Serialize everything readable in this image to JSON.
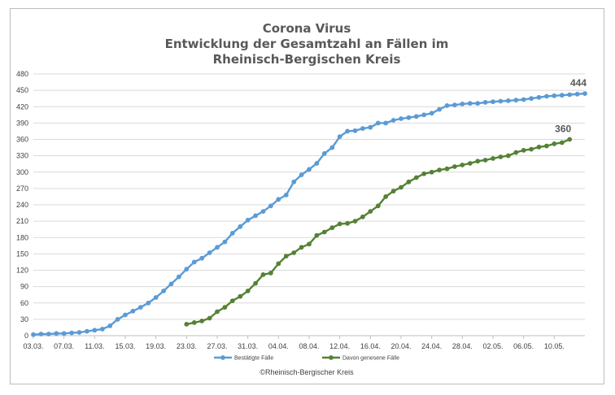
{
  "chart_data": {
    "type": "line",
    "title_lines": [
      "Corona Virus",
      "Entwicklung der Gesamtzahl an Fällen im",
      "Rheinisch-Bergischen Kreis"
    ],
    "xlabel": "",
    "ylabel": "",
    "ylim": [
      0,
      480
    ],
    "yticks": [
      0,
      30,
      60,
      90,
      120,
      150,
      180,
      210,
      240,
      270,
      300,
      330,
      360,
      390,
      420,
      450,
      480
    ],
    "xticks": [
      "03.03.",
      "07.03.",
      "11.03.",
      "15.03.",
      "19.03.",
      "23.03.",
      "27.03.",
      "31.03.",
      "04.04.",
      "08.04.",
      "12.04.",
      "16.04.",
      "20.04.",
      "24.04.",
      "28.04.",
      "02.05.",
      "06.05.",
      "10.05."
    ],
    "grid": true,
    "legend_position": "bottom",
    "series": [
      {
        "name": "Bestätigte Fälle",
        "color": "#5b9bd5",
        "start_index": 0,
        "end_label": "444",
        "values": [
          2,
          3,
          3,
          4,
          4,
          5,
          6,
          8,
          10,
          12,
          18,
          30,
          38,
          45,
          52,
          60,
          70,
          82,
          95,
          108,
          122,
          135,
          142,
          152,
          162,
          172,
          188,
          200,
          212,
          220,
          228,
          238,
          250,
          258,
          282,
          295,
          305,
          316,
          334,
          345,
          365,
          375,
          376,
          380,
          382,
          390,
          390,
          395,
          398,
          400,
          402,
          405,
          408,
          415,
          422,
          423,
          425,
          426,
          426,
          428,
          429,
          430,
          431,
          432,
          433,
          435,
          437,
          439,
          440,
          441,
          442,
          443,
          444
        ]
      },
      {
        "name": "Davon genesene Fälle",
        "color": "#548235",
        "start_index": 20,
        "end_label": "360",
        "values": [
          21,
          24,
          27,
          32,
          44,
          52,
          64,
          72,
          82,
          96,
          112,
          115,
          132,
          146,
          152,
          162,
          168,
          184,
          190,
          198,
          205,
          206,
          210,
          218,
          228,
          238,
          255,
          265,
          272,
          282,
          290,
          297,
          300,
          304,
          306,
          310,
          313,
          316,
          320,
          322,
          325,
          328,
          330,
          336,
          340,
          342,
          346,
          348,
          352,
          354,
          360
        ]
      }
    ]
  },
  "footer": {
    "source": "©Rheinisch-Bergischer Kreis"
  }
}
